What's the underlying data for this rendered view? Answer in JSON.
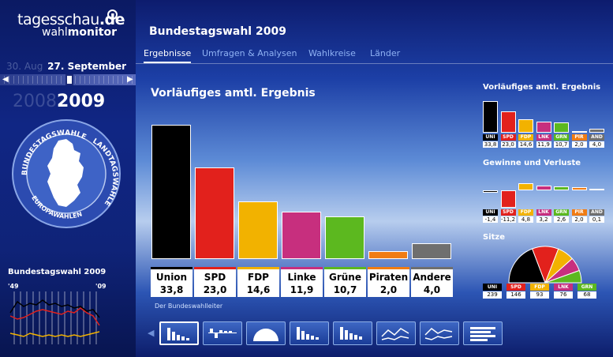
{
  "brand": {
    "tagesschau": "tagesschau",
    "de": ".de",
    "wahl": "wahl",
    "monitor": "monitor"
  },
  "left": {
    "date_prev": "30. Aug",
    "date_current": "27. September",
    "year_prev": "2008",
    "year_current": "2009",
    "wheel_labels": {
      "top": "BUNDESTAGSWAHLEN",
      "right": "LANDTAGSWAHLEN",
      "bottom": "EUROPAWAHLEN"
    },
    "mini_chart": {
      "title": "Bundestagswahl 2009",
      "x_start": "'49",
      "x_end": "'09"
    }
  },
  "header": {
    "title": "Bundestagswahl 2009"
  },
  "nav": {
    "tabs": [
      {
        "label": "Ergebnisse",
        "active": true
      },
      {
        "label": "Umfragen & Analysen",
        "active": false
      },
      {
        "label": "Wahlkreise",
        "active": false
      },
      {
        "label": "Länder",
        "active": false
      }
    ]
  },
  "main_chart": {
    "title": "Vorläufiges amtl. Ergebnis",
    "source": "Der Bundeswahlleiter"
  },
  "chart_data": [
    {
      "type": "bar",
      "title": "Vorläufiges amtl. Ergebnis",
      "categories": [
        "Union",
        "SPD",
        "FDP",
        "Linke",
        "Grüne",
        "Piraten",
        "Andere"
      ],
      "values": [
        33.8,
        23.0,
        14.6,
        11.9,
        10.7,
        2.0,
        4.0
      ],
      "value_labels": [
        "33,8",
        "23,0",
        "14,6",
        "11,9",
        "10,7",
        "2,0",
        "4,0"
      ],
      "colors": [
        "#000000",
        "#e2211c",
        "#f2b200",
        "#c72f7e",
        "#5cb81f",
        "#f07c14",
        "#6f6f6f"
      ],
      "ylim": [
        0,
        35
      ]
    },
    {
      "type": "bar",
      "title": "Vorläufiges amtl. Ergebnis",
      "categories": [
        "UNI",
        "SPD",
        "FDP",
        "LNK",
        "GRN",
        "PIR",
        "AND"
      ],
      "values": [
        33.8,
        23.0,
        14.6,
        11.9,
        10.7,
        2.0,
        4.0
      ],
      "value_labels": [
        "33,8",
        "23,0",
        "14,6",
        "11,9",
        "10,7",
        "2,0",
        "4,0"
      ]
    },
    {
      "type": "bar",
      "title": "Gewinne und Verluste",
      "categories": [
        "UNI",
        "SPD",
        "FDP",
        "LNK",
        "GRN",
        "PIR",
        "AND"
      ],
      "values": [
        -1.4,
        -11.2,
        4.8,
        3.2,
        2.6,
        2.0,
        0.1
      ],
      "value_labels": [
        "-1,4",
        "-11,2",
        "4,8",
        "3,2",
        "2,6",
        "2,0",
        "0,1"
      ]
    },
    {
      "type": "pie",
      "title": "Sitze",
      "categories": [
        "UNI",
        "SPD",
        "FDP",
        "LNK",
        "GRN"
      ],
      "values": [
        239,
        146,
        93,
        76,
        68
      ],
      "colors": [
        "#000000",
        "#e2211c",
        "#f2b200",
        "#c72f7e",
        "#5cb81f"
      ]
    }
  ],
  "mini_colors": {
    "UNI": "#000000",
    "SPD": "#e2211c",
    "FDP": "#f2b200",
    "LNK": "#c72f7e",
    "GRN": "#5cb81f",
    "PIR": "#f07c14",
    "AND": "#6f6f6f"
  }
}
